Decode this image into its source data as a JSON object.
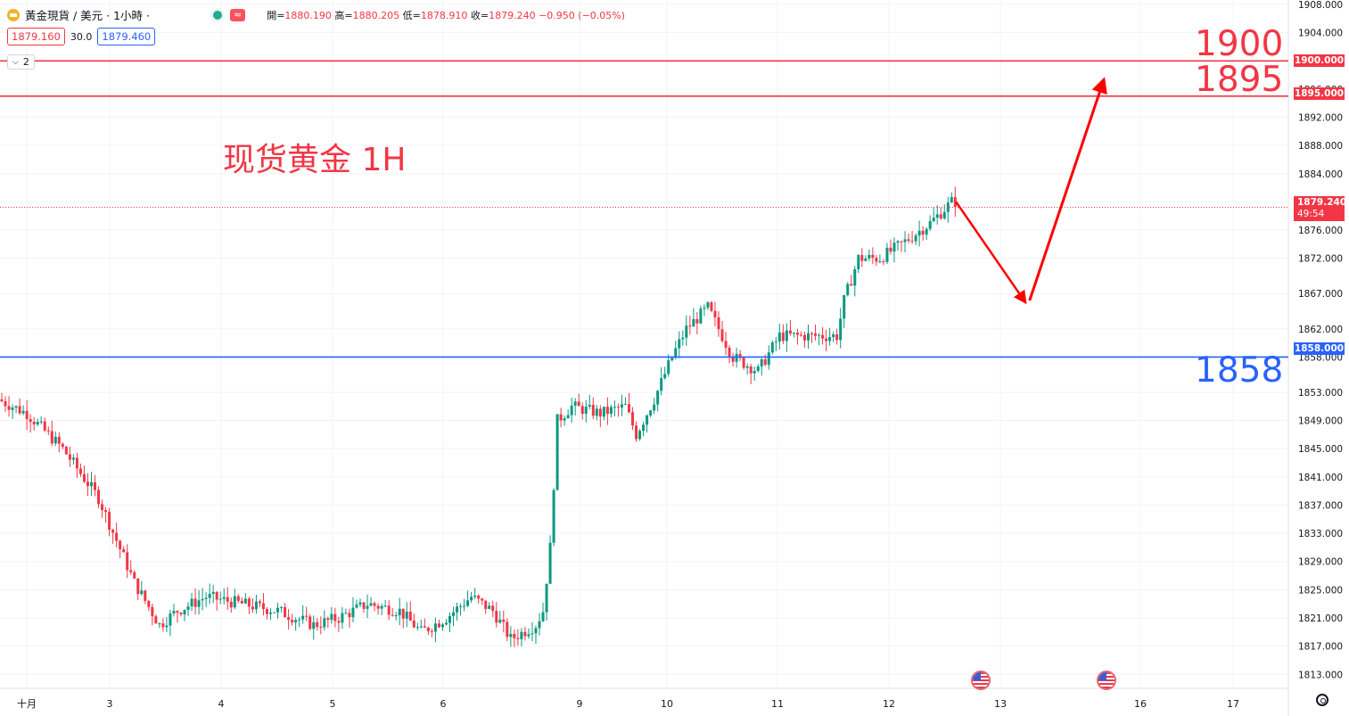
{
  "header": {
    "title": "黃金現貨 / 美元 · 1小時 ·",
    "approx_label": "≈",
    "ohlc": {
      "open_label": "開=",
      "open": "1880.190",
      "high_label": "高=",
      "high": "1880.205",
      "low_label": "低=",
      "low": "1878.910",
      "close_label": "收=",
      "close": "1879.240",
      "change": "−0.950 (−0.05%)"
    }
  },
  "trade": {
    "sell": "1879.160",
    "spread": "30.0",
    "buy": "1879.460"
  },
  "indicators": {
    "count": "2"
  },
  "annotation": {
    "text": "现货黄金 1H"
  },
  "levels": [
    {
      "label": "1900",
      "price": 1900,
      "tag": "1900.000",
      "color": "#f23645"
    },
    {
      "label": "1895",
      "price": 1895,
      "tag": "1895.000",
      "color": "#f23645"
    },
    {
      "label": "1858",
      "price": 1858,
      "tag": "1858.000",
      "color": "#2962ff"
    }
  ],
  "current": {
    "price": "1879.240",
    "countdown": "49:54",
    "color": "#f23645"
  },
  "colors": {
    "up": "#089981",
    "down": "#f23645",
    "grid": "#f0f3fa"
  },
  "chart_data": {
    "type": "candlestick",
    "title": "现货黄金 1H",
    "ylim": [
      1810,
      1908
    ],
    "y_ticks": [
      "1908.000",
      "1904.000",
      "1900.000",
      "1896.000",
      "1892.000",
      "1888.000",
      "1884.000",
      "1880.000",
      "1876.000",
      "1872.000",
      "1867.000",
      "1862.000",
      "1858.000",
      "1853.000",
      "1849.000",
      "1845.000",
      "1841.000",
      "1837.000",
      "1833.000",
      "1829.000",
      "1825.000",
      "1821.000",
      "1817.000",
      "1813.000"
    ],
    "x_ticks": [
      "十月",
      "3",
      "4",
      "5",
      "6",
      "9",
      "10",
      "11",
      "12",
      "13",
      "16",
      "17"
    ],
    "anchors": [
      [
        0,
        1852
      ],
      [
        8,
        1850
      ],
      [
        18,
        1845
      ],
      [
        28,
        1838
      ],
      [
        38,
        1826
      ],
      [
        45,
        1820
      ],
      [
        50,
        1822
      ],
      [
        58,
        1824
      ],
      [
        68,
        1823
      ],
      [
        78,
        1822
      ],
      [
        88,
        1820
      ],
      [
        95,
        1821
      ],
      [
        103,
        1823
      ],
      [
        112,
        1822
      ],
      [
        118,
        1819
      ],
      [
        125,
        1821
      ],
      [
        132,
        1824
      ],
      [
        138,
        1822
      ],
      [
        143,
        1818
      ],
      [
        150,
        1820
      ],
      [
        152,
        1822
      ],
      [
        154,
        1831
      ],
      [
        156,
        1849
      ],
      [
        160,
        1851
      ],
      [
        168,
        1850
      ],
      [
        175,
        1851
      ],
      [
        178,
        1847
      ],
      [
        183,
        1852
      ],
      [
        188,
        1858
      ],
      [
        192,
        1862
      ],
      [
        198,
        1865
      ],
      [
        205,
        1858
      ],
      [
        212,
        1856
      ],
      [
        218,
        1861
      ],
      [
        228,
        1861
      ],
      [
        234,
        1861
      ],
      [
        236,
        1866
      ],
      [
        240,
        1872
      ],
      [
        246,
        1872
      ],
      [
        252,
        1874
      ],
      [
        260,
        1877
      ],
      [
        266,
        1880
      ]
    ],
    "arrow_path": [
      [
        266,
        1880
      ],
      [
        285,
        1866
      ],
      [
        307,
        1897
      ]
    ]
  }
}
